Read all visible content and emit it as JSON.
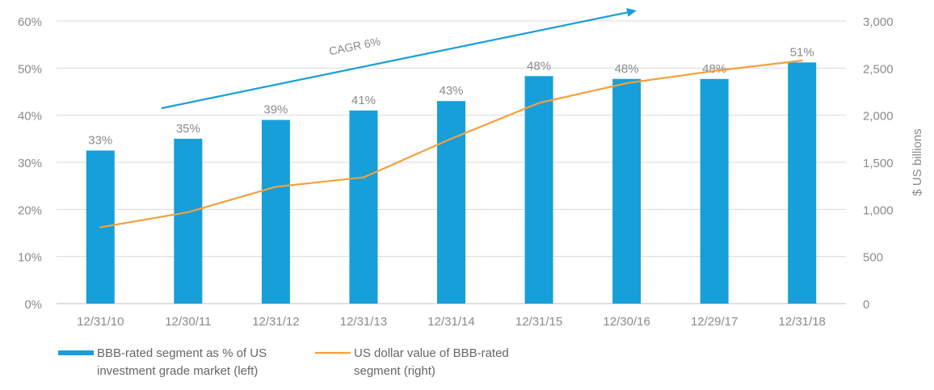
{
  "chart_data": {
    "type": "bar",
    "categories": [
      "12/31/10",
      "12/30/11",
      "12/31/12",
      "12/31/13",
      "12/31/14",
      "12/31/15",
      "12/30/16",
      "12/29/17",
      "12/31/18"
    ],
    "series": [
      {
        "name": "BBB-rated segment as % of US investment grade market (left)",
        "legend_lines": [
          "BBB-rated segment as % of US",
          "investment grade market (left)"
        ],
        "type": "bar",
        "axis": "left",
        "color": "#179fd9",
        "values": [
          32.5,
          35,
          39,
          41,
          43,
          48.3,
          47.7,
          47.7,
          51.2
        ],
        "labels": [
          "33%",
          "35%",
          "39%",
          "41%",
          "43%",
          "48%",
          "48%",
          "48%",
          "51%"
        ]
      },
      {
        "name": "US dollar value of BBB-rated segment (right)",
        "legend_lines": [
          "US dollar value of BBB-rated",
          "segment (right)"
        ],
        "type": "line",
        "axis": "right",
        "color": "#f5a03a",
        "values": [
          810,
          970,
          1240,
          1340,
          1750,
          2130,
          2340,
          2470,
          2580
        ]
      }
    ],
    "y_left": {
      "ylim": [
        0,
        60
      ],
      "ticks": [
        0,
        10,
        20,
        30,
        40,
        50,
        60
      ],
      "tick_labels": [
        "0%",
        "10%",
        "20%",
        "30%",
        "40%",
        "50%",
        "60%"
      ]
    },
    "y_right": {
      "label": "$ US billions",
      "ylim": [
        0,
        3000
      ],
      "ticks": [
        0,
        500,
        1000,
        1500,
        2000,
        2500,
        3000
      ],
      "tick_labels": [
        "0",
        "500",
        "1,000",
        "1,500",
        "2,000",
        "2,500",
        "3,000"
      ]
    },
    "annotation": {
      "text": "CAGR 6%",
      "color": "#179fd9"
    },
    "grid": true,
    "legend_position": "bottom-left"
  }
}
